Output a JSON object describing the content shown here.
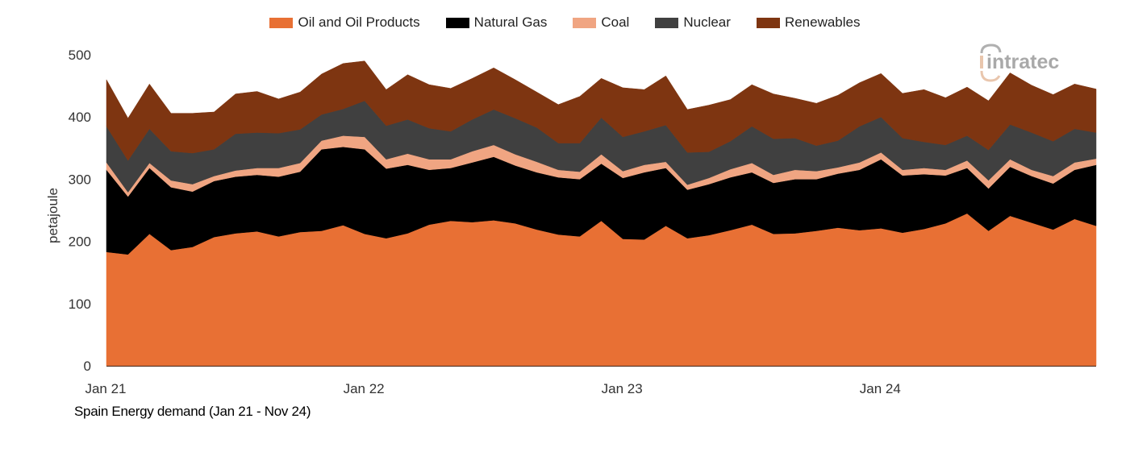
{
  "chart_data": {
    "type": "area",
    "stacked": true,
    "title": "Spain Energy demand (Jan 21 - Nov 24)",
    "xlabel": "",
    "ylabel": "petajoule",
    "ylim": [
      0,
      500
    ],
    "yticks": [
      0,
      100,
      200,
      300,
      400,
      500
    ],
    "xtick_labels": [
      {
        "index": 0,
        "label": "Jan 21"
      },
      {
        "index": 12,
        "label": "Jan 22"
      },
      {
        "index": 24,
        "label": "Jan 23"
      },
      {
        "index": 36,
        "label": "Jan 24"
      }
    ],
    "grid": false,
    "legend_position": "top-center",
    "x": [
      "Jan 21",
      "Feb 21",
      "Mar 21",
      "Apr 21",
      "May 21",
      "Jun 21",
      "Jul 21",
      "Aug 21",
      "Sep 21",
      "Oct 21",
      "Nov 21",
      "Dec 21",
      "Jan 22",
      "Feb 22",
      "Mar 22",
      "Apr 22",
      "May 22",
      "Jun 22",
      "Jul 22",
      "Aug 22",
      "Sep 22",
      "Oct 22",
      "Nov 22",
      "Dec 22",
      "Jan 23",
      "Feb 23",
      "Mar 23",
      "Apr 23",
      "May 23",
      "Jun 23",
      "Jul 23",
      "Aug 23",
      "Sep 23",
      "Oct 23",
      "Nov 23",
      "Dec 23",
      "Jan 24",
      "Feb 24",
      "Mar 24",
      "Apr 24",
      "May 24",
      "Jun 24",
      "Jul 24",
      "Aug 24",
      "Sep 24",
      "Oct 24",
      "Nov 24"
    ],
    "series": [
      {
        "name": "Oil and Oil Products",
        "color": "#E87034",
        "values": [
          183,
          179,
          212,
          186,
          191,
          207,
          213,
          216,
          208,
          215,
          217,
          226,
          212,
          205,
          213,
          227,
          233,
          231,
          234,
          229,
          219,
          211,
          208,
          233,
          204,
          203,
          225,
          205,
          210,
          218,
          227,
          212,
          213,
          217,
          222,
          218,
          221,
          214,
          220,
          229,
          245,
          217,
          241,
          230,
          219,
          236,
          225
        ]
      },
      {
        "name": "Natural Gas",
        "color": "#000000",
        "values": [
          132,
          93,
          106,
          101,
          89,
          90,
          91,
          91,
          96,
          97,
          131,
          126,
          136,
          112,
          110,
          88,
          85,
          96,
          102,
          93,
          92,
          92,
          92,
          92,
          98,
          108,
          93,
          78,
          82,
          85,
          84,
          82,
          87,
          83,
          87,
          97,
          111,
          92,
          88,
          77,
          73,
          68,
          79,
          75,
          74,
          79,
          98
        ]
      },
      {
        "name": "Coal",
        "color": "#F0A582",
        "values": [
          12,
          7,
          8,
          11,
          12,
          8,
          10,
          11,
          14,
          14,
          14,
          18,
          20,
          15,
          18,
          17,
          14,
          18,
          19,
          18,
          17,
          12,
          12,
          15,
          11,
          12,
          10,
          8,
          10,
          13,
          15,
          13,
          15,
          13,
          10,
          12,
          11,
          9,
          10,
          9,
          12,
          13,
          12,
          10,
          12,
          12,
          10
        ]
      },
      {
        "name": "Nuclear",
        "color": "#404040",
        "values": [
          58,
          51,
          55,
          47,
          50,
          43,
          59,
          57,
          56,
          54,
          42,
          43,
          58,
          54,
          55,
          50,
          45,
          51,
          57,
          58,
          55,
          43,
          46,
          59,
          55,
          54,
          59,
          52,
          42,
          45,
          59,
          58,
          51,
          41,
          43,
          58,
          57,
          51,
          42,
          40,
          40,
          49,
          56,
          60,
          56,
          54,
          42
        ]
      },
      {
        "name": "Renewables",
        "color": "#7E3511",
        "values": [
          75,
          68,
          72,
          61,
          64,
          60,
          64,
          66,
          55,
          60,
          65,
          73,
          64,
          58,
          72,
          70,
          69,
          66,
          67,
          62,
          57,
          62,
          75,
          63,
          79,
          67,
          79,
          69,
          75,
          67,
          67,
          72,
          64,
          68,
          73,
          70,
          70,
          72,
          84,
          76,
          78,
          79,
          83,
          76,
          75,
          72,
          70
        ]
      }
    ]
  },
  "legend": [
    {
      "label": "Oil and Oil Products",
      "color": "#E87034"
    },
    {
      "label": "Natural Gas",
      "color": "#000000"
    },
    {
      "label": "Coal",
      "color": "#F0A582"
    },
    {
      "label": "Nuclear",
      "color": "#404040"
    },
    {
      "label": "Renewables",
      "color": "#7E3511"
    }
  ],
  "logo": {
    "text": "intratec",
    "initial": "i"
  }
}
